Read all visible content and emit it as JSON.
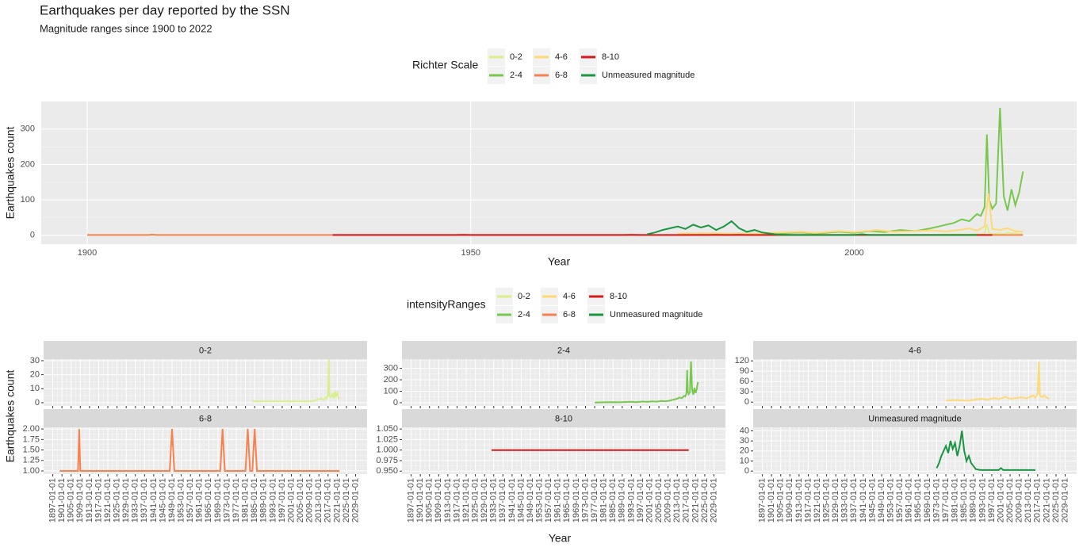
{
  "chart_data": [
    {
      "type": "line",
      "title": "Earthquakes per day reported by the SSN",
      "subtitle": "Magnitude ranges since 1900 to 2022",
      "legend_title": "Richter Scale",
      "x_label": "Year",
      "y_label": "Earthquakes count",
      "xlim": [
        1894,
        2029
      ],
      "xticks": [
        1900,
        1950,
        2000
      ],
      "ylim": [
        -25,
        378
      ],
      "yticks": [
        0,
        100,
        200,
        300
      ],
      "grid": true,
      "series": [
        {
          "name": "0-2",
          "color": "#d9ef8b",
          "x": [
            1984,
            1990,
            1995,
            2000,
            2005,
            2010,
            2012,
            2014,
            2015,
            2016,
            2016.5,
            2017,
            2017.3,
            2017.6,
            2018,
            2019,
            2019.5,
            2020,
            2020.5,
            2021,
            2021.5,
            2022
          ],
          "values": [
            1,
            1,
            1,
            1,
            1,
            1,
            2,
            3,
            2,
            4,
            3,
            6,
            31,
            5,
            4,
            6,
            3,
            8,
            5,
            7,
            3,
            4
          ]
        },
        {
          "name": "2-4",
          "color": "#78c850",
          "x": [
            1977,
            1980,
            1985,
            1988,
            1990,
            1993,
            1995,
            1998,
            2000,
            2002,
            2004,
            2006,
            2008,
            2010,
            2011,
            2012,
            2013,
            2014,
            2015,
            2016,
            2016.5,
            2017,
            2017.3,
            2017.6,
            2018,
            2018.5,
            2019,
            2019.5,
            2020,
            2020.5,
            2021,
            2021.5,
            2022
          ],
          "values": [
            2,
            3,
            5,
            4,
            6,
            8,
            5,
            10,
            7,
            12,
            9,
            15,
            12,
            20,
            25,
            30,
            35,
            45,
            40,
            60,
            55,
            80,
            285,
            100,
            75,
            90,
            360,
            110,
            70,
            130,
            85,
            120,
            180
          ]
        },
        {
          "name": "4-6",
          "color": "#fed976",
          "x": [
            1977,
            1982,
            1987,
            1990,
            1993,
            1995,
            1998,
            2000,
            2003,
            2005,
            2008,
            2010,
            2012,
            2014,
            2015,
            2016,
            2017,
            2017.5,
            2018,
            2019,
            2020,
            2021,
            2022
          ],
          "values": [
            5,
            6,
            4,
            8,
            10,
            7,
            12,
            9,
            15,
            10,
            12,
            14,
            11,
            16,
            20,
            13,
            25,
            118,
            18,
            15,
            20,
            12,
            10
          ]
        },
        {
          "name": "6-8",
          "color": "#f88150",
          "x": [
            1900,
            1908,
            1908.5,
            1909,
            1948,
            1949,
            1950,
            1970,
            1971,
            1972,
            1981,
            1982,
            1983,
            1984,
            1985,
            1986,
            2022
          ],
          "values": [
            1,
            1,
            2,
            1,
            1,
            2,
            1,
            1,
            2,
            1,
            1,
            2,
            1,
            1,
            2,
            1,
            1
          ]
        },
        {
          "name": "8-10",
          "color": "#d7191c",
          "x": [
            1932,
            2018
          ],
          "values": [
            1,
            1
          ]
        },
        {
          "name": "Unmeasured magnitude",
          "color": "#1a9641",
          "x": [
            1973,
            1974,
            1975,
            1976,
            1977,
            1978,
            1979,
            1980,
            1981,
            1982,
            1983,
            1984,
            1985,
            1986,
            1987,
            1988,
            1989,
            1990,
            1992,
            1995,
            2000,
            2001,
            2002,
            2005,
            2010,
            2016
          ],
          "values": [
            3,
            8,
            15,
            20,
            25,
            18,
            30,
            22,
            28,
            15,
            25,
            40,
            20,
            10,
            15,
            8,
            5,
            2,
            1,
            1,
            1,
            3,
            1,
            1,
            1,
            1
          ]
        }
      ]
    },
    {
      "type": "facet_line",
      "legend_title": "intensityRanges",
      "x_label": "Year",
      "y_label": "Earthquakes count",
      "xlim": [
        1893,
        2034
      ],
      "xticks": [
        {
          "value": 1897,
          "label": "1897-01-01"
        },
        {
          "value": 1901,
          "label": "1901-01-01"
        },
        {
          "value": 1905,
          "label": "1905-01-01"
        },
        {
          "value": 1909,
          "label": "1909-01-01"
        },
        {
          "value": 1913,
          "label": "1913-01-01"
        },
        {
          "value": 1917,
          "label": "1917-01-01"
        },
        {
          "value": 1921,
          "label": "1921-01-01"
        },
        {
          "value": 1925,
          "label": "1925-01-01"
        },
        {
          "value": 1929,
          "label": "1929-01-01"
        },
        {
          "value": 1933,
          "label": "1933-01-01"
        },
        {
          "value": 1937,
          "label": "1937-01-01"
        },
        {
          "value": 1941,
          "label": "1941-01-01"
        },
        {
          "value": 1945,
          "label": "1945-01-01"
        },
        {
          "value": 1949,
          "label": "1949-01-01"
        },
        {
          "value": 1953,
          "label": "1953-01-01"
        },
        {
          "value": 1957,
          "label": "1957-01-01"
        },
        {
          "value": 1961,
          "label": "1961-01-01"
        },
        {
          "value": 1965,
          "label": "1965-01-01"
        },
        {
          "value": 1969,
          "label": "1969-01-01"
        },
        {
          "value": 1973,
          "label": "1973-01-01"
        },
        {
          "value": 1977,
          "label": "1977-01-01"
        },
        {
          "value": 1981,
          "label": "1981-01-01"
        },
        {
          "value": 1985,
          "label": "1985-01-01"
        },
        {
          "value": 1989,
          "label": "1989-01-01"
        },
        {
          "value": 1993,
          "label": "1993-01-01"
        },
        {
          "value": 1997,
          "label": "1997-01-01"
        },
        {
          "value": 2001,
          "label": "2001-01-01"
        },
        {
          "value": 2005,
          "label": "2005-01-01"
        },
        {
          "value": 2009,
          "label": "2009-01-01"
        },
        {
          "value": 2013,
          "label": "2013-01-01"
        },
        {
          "value": 2017,
          "label": "2017-01-01"
        },
        {
          "value": 2021,
          "label": "2021-01-01"
        },
        {
          "value": 2025,
          "label": "2025-01-01"
        },
        {
          "value": 2029,
          "label": "2029-01-01"
        }
      ],
      "panels": [
        {
          "title": "0-2",
          "color": "#d9ef8b",
          "ylim": [
            -2.3,
            31.1
          ],
          "yticks": [
            0,
            10,
            20,
            30
          ],
          "x": [
            1984,
            1990,
            1995,
            2000,
            2005,
            2010,
            2012,
            2014,
            2015,
            2016,
            2016.5,
            2017,
            2017.3,
            2017.6,
            2018,
            2019,
            2019.5,
            2020,
            2020.5,
            2021,
            2021.5,
            2022
          ],
          "values": [
            1,
            1,
            1,
            1,
            1,
            1,
            2,
            3,
            2,
            4,
            3,
            6,
            31,
            5,
            4,
            6,
            3,
            8,
            5,
            7,
            3,
            4
          ]
        },
        {
          "title": "2-4",
          "color": "#78c850",
          "ylim": [
            -28,
            380
          ],
          "yticks": [
            0,
            100,
            200,
            300
          ],
          "x": [
            1977,
            1980,
            1985,
            1988,
            1990,
            1993,
            1995,
            1998,
            2000,
            2002,
            2004,
            2006,
            2008,
            2010,
            2011,
            2012,
            2013,
            2014,
            2015,
            2016,
            2016.5,
            2017,
            2017.3,
            2017.6,
            2018,
            2018.5,
            2019,
            2019.5,
            2020,
            2020.5,
            2021,
            2021.5,
            2022
          ],
          "values": [
            2,
            3,
            5,
            4,
            6,
            8,
            5,
            10,
            7,
            12,
            9,
            15,
            12,
            20,
            25,
            30,
            35,
            45,
            40,
            60,
            55,
            80,
            285,
            100,
            75,
            90,
            360,
            110,
            70,
            130,
            85,
            120,
            180
          ]
        },
        {
          "title": "4-6",
          "color": "#fed976",
          "ylim": [
            -11,
            125
          ],
          "yticks": [
            0,
            30,
            60,
            90,
            120
          ],
          "x": [
            1977,
            1982,
            1987,
            1990,
            1993,
            1995,
            1998,
            2000,
            2003,
            2005,
            2008,
            2010,
            2012,
            2014,
            2015,
            2016,
            2017,
            2017.5,
            2018,
            2019,
            2020,
            2021,
            2022
          ],
          "values": [
            5,
            6,
            4,
            8,
            10,
            7,
            12,
            9,
            15,
            10,
            12,
            14,
            11,
            16,
            20,
            13,
            25,
            118,
            18,
            15,
            20,
            12,
            10
          ]
        },
        {
          "title": "6-8",
          "color": "#f88150",
          "ylim": [
            0.925,
            2.04
          ],
          "yticks": [
            {
              "value": 1,
              "label": "1.00"
            },
            {
              "value": 1.25,
              "label": "1.25"
            },
            {
              "value": 1.5,
              "label": "1.50"
            },
            {
              "value": 1.75,
              "label": "1.75"
            },
            {
              "value": 2,
              "label": "2.00"
            }
          ],
          "x": [
            1900,
            1908,
            1908.5,
            1909,
            1948,
            1949,
            1950,
            1970,
            1971,
            1972,
            1981,
            1982,
            1983,
            1984,
            1985,
            1986,
            2022
          ],
          "values": [
            1,
            1,
            2,
            1,
            1,
            2,
            1,
            1,
            2,
            1,
            1,
            2,
            1,
            1,
            2,
            1,
            1
          ]
        },
        {
          "title": "8-10",
          "color": "#d7191c",
          "ylim": [
            0.943,
            1.054
          ],
          "yticks": [
            {
              "value": 0.95,
              "label": "0.950"
            },
            {
              "value": 0.975,
              "label": "0.975"
            },
            {
              "value": 1,
              "label": "1.000"
            },
            {
              "value": 1.025,
              "label": "1.025"
            },
            {
              "value": 1.05,
              "label": "1.050"
            }
          ],
          "x": [
            1932,
            2018
          ],
          "values": [
            1,
            1
          ]
        },
        {
          "title": "Unmeasured magnitude",
          "color": "#1a9641",
          "ylim": [
            -3,
            43.5
          ],
          "yticks": [
            0,
            10,
            20,
            30,
            40
          ],
          "x": [
            1973,
            1974,
            1975,
            1976,
            1977,
            1978,
            1979,
            1980,
            1981,
            1982,
            1983,
            1984,
            1985,
            1986,
            1987,
            1988,
            1989,
            1990,
            1992,
            1995,
            2000,
            2001,
            2002,
            2005,
            2010,
            2016
          ],
          "values": [
            3,
            8,
            15,
            20,
            25,
            18,
            30,
            22,
            28,
            15,
            25,
            40,
            20,
            10,
            15,
            8,
            5,
            2,
            1,
            1,
            1,
            3,
            1,
            1,
            1,
            1
          ]
        }
      ]
    }
  ]
}
